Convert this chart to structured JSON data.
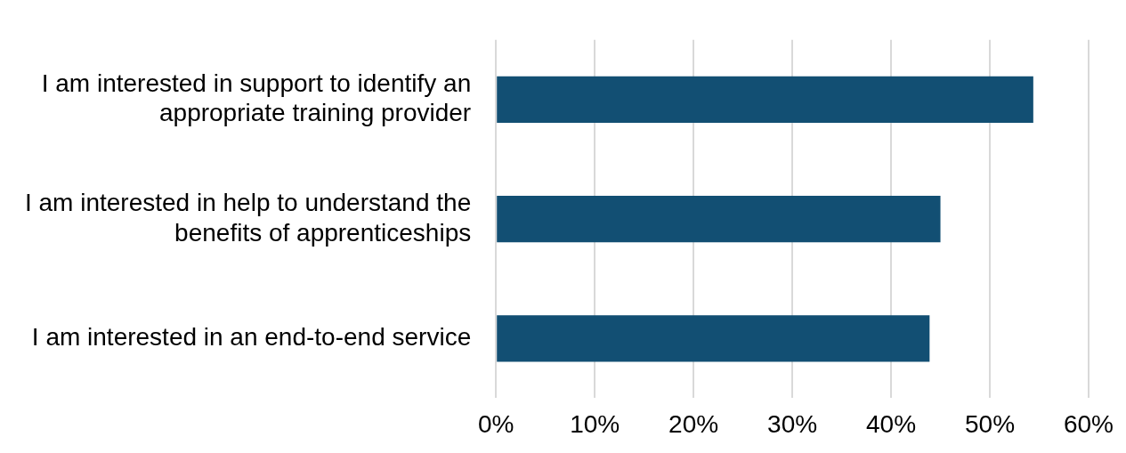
{
  "chart_data": {
    "type": "bar",
    "orientation": "horizontal",
    "categories": [
      "I am interested in support to identify an appropriate training provider",
      "I am interested in help to understand the benefits of apprenticeships",
      "I am interested in an end-to-end service"
    ],
    "values": [
      54.4,
      45,
      43.9
    ],
    "color": "#124f73",
    "xlim": [
      0,
      60
    ],
    "xticks": [
      {
        "value": 0,
        "label": "0%"
      },
      {
        "value": 10,
        "label": "10%"
      },
      {
        "value": 20,
        "label": "20%"
      },
      {
        "value": 30,
        "label": "30%"
      },
      {
        "value": 40,
        "label": "40%"
      },
      {
        "value": 50,
        "label": "50%"
      },
      {
        "value": 60,
        "label": "60%"
      }
    ],
    "grid": "x"
  }
}
